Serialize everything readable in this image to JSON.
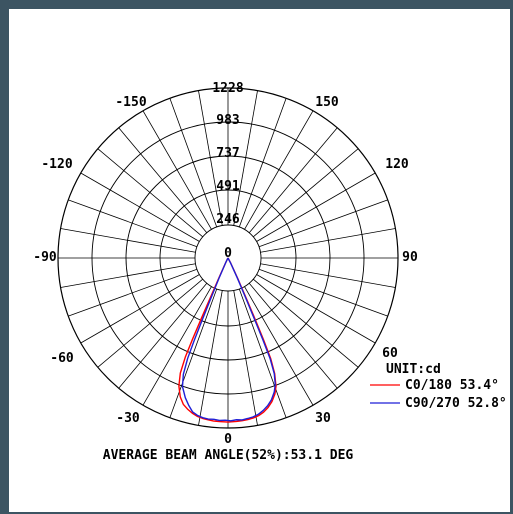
{
  "chart_data": {
    "type": "polar",
    "ring_labels": [
      "1228",
      "983",
      "737",
      "491",
      "246",
      "0"
    ],
    "angle_labels": {
      "top": [
        "-150",
        "150"
      ],
      "upper": [
        "-120",
        "120"
      ],
      "side": [
        "-90",
        "90"
      ],
      "lower": [
        "-60",
        "60"
      ],
      "bottom_side": [
        "-30",
        "30"
      ],
      "bottom": [
        "0"
      ]
    },
    "rmax": 1228,
    "unit_label": "UNIT:cd",
    "series": [
      {
        "name": "C0/180 53.4°",
        "color": "#ff0000",
        "points": [
          [
            -30,
            0
          ],
          [
            -28,
            12
          ],
          [
            -26,
            40
          ],
          [
            -24.6,
            160
          ],
          [
            -24,
            320
          ],
          [
            -23.8,
            480
          ],
          [
            -23.6,
            640
          ],
          [
            -23.3,
            780
          ],
          [
            -22.5,
            900
          ],
          [
            -21,
            990
          ],
          [
            -19,
            1060
          ],
          [
            -17,
            1105
          ],
          [
            -15,
            1130
          ],
          [
            -13,
            1150
          ],
          [
            -11,
            1165
          ],
          [
            -9,
            1173
          ],
          [
            -7,
            1178
          ],
          [
            -5,
            1182
          ],
          [
            -3,
            1183
          ],
          [
            0,
            1185
          ],
          [
            3,
            1182
          ],
          [
            5,
            1180
          ],
          [
            7,
            1176
          ],
          [
            9,
            1170
          ],
          [
            11,
            1160
          ],
          [
            13,
            1143
          ],
          [
            15,
            1118
          ],
          [
            17,
            1085
          ],
          [
            19,
            1040
          ],
          [
            20.5,
            990
          ],
          [
            22,
            900
          ],
          [
            23,
            790
          ],
          [
            23.5,
            640
          ],
          [
            23.9,
            480
          ],
          [
            24.4,
            320
          ],
          [
            25.5,
            160
          ],
          [
            28,
            40
          ],
          [
            30,
            0
          ]
        ]
      },
      {
        "name": "C90/270 52.8°",
        "color": "#1f1fd6",
        "points": [
          [
            -30,
            0
          ],
          [
            -28,
            12
          ],
          [
            -26,
            40
          ],
          [
            -24,
            160
          ],
          [
            -23,
            320
          ],
          [
            -22.6,
            480
          ],
          [
            -22.3,
            640
          ],
          [
            -21.9,
            780
          ],
          [
            -21,
            900
          ],
          [
            -19.5,
            985
          ],
          [
            -17,
            1055
          ],
          [
            -15,
            1100
          ],
          [
            -13,
            1140
          ],
          [
            -11,
            1158
          ],
          [
            -9,
            1168
          ],
          [
            -7,
            1172
          ],
          [
            -5,
            1170
          ],
          [
            -3,
            1175
          ],
          [
            -1,
            1172
          ],
          [
            1,
            1176
          ],
          [
            3,
            1170
          ],
          [
            5,
            1174
          ],
          [
            7,
            1168
          ],
          [
            9,
            1162
          ],
          [
            11,
            1150
          ],
          [
            13,
            1130
          ],
          [
            15,
            1105
          ],
          [
            17,
            1072
          ],
          [
            19,
            1025
          ],
          [
            20.5,
            975
          ],
          [
            21.8,
            900
          ],
          [
            22.7,
            790
          ],
          [
            23.1,
            640
          ],
          [
            23.4,
            480
          ],
          [
            23.9,
            320
          ],
          [
            25,
            160
          ],
          [
            27.5,
            40
          ],
          [
            30,
            0
          ]
        ]
      }
    ],
    "footer": "AVERAGE BEAM ANGLE(52%):53.1 DEG"
  }
}
